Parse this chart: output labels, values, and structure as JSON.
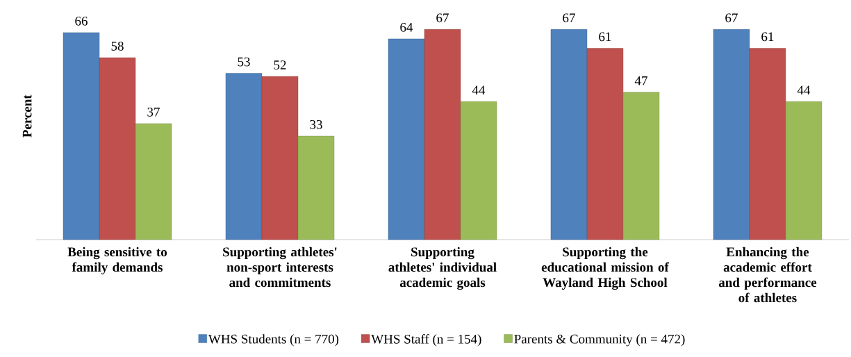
{
  "chart_data": {
    "type": "bar",
    "ylabel": "Percent",
    "categories": [
      "Being sensitive to family demands",
      "Supporting athletes' non-sport interests and commitments",
      "Supporting athletes' individual academic goals",
      "Supporting the educational mission of Wayland High School",
      "Enhancing the academic effort and performance of athletes"
    ],
    "series": [
      {
        "name": "WHS Students (n = 770)",
        "color": "#4f81bd",
        "values": [
          66,
          53,
          64,
          67,
          67
        ]
      },
      {
        "name": "WHS Staff (n = 154)",
        "color": "#c0504d",
        "values": [
          58,
          52,
          67,
          61,
          61
        ]
      },
      {
        "name": "Parents & Community (n = 472)",
        "color": "#9bbb59",
        "values": [
          37,
          33,
          44,
          47,
          44
        ]
      }
    ],
    "data_labels": true,
    "legend": "bottom"
  }
}
